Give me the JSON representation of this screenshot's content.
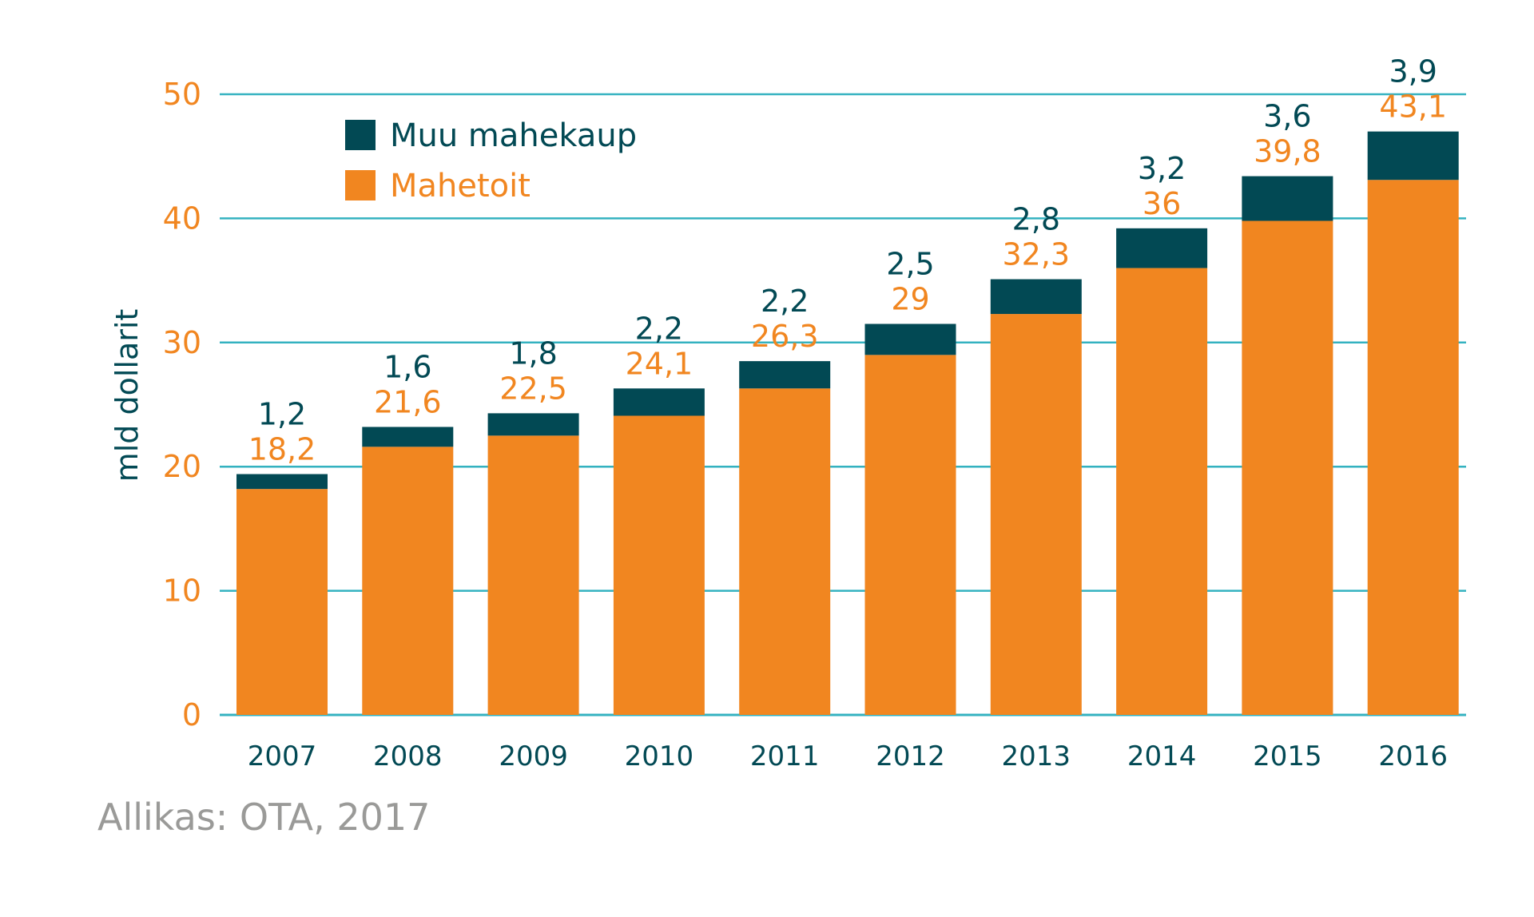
{
  "colors": {
    "food": "#F18620",
    "other": "#024954",
    "grid": "#34B2C0",
    "tick_label": "#F18620",
    "year_label": "#024954",
    "axis_title": "#024954",
    "source": "#9A9A98"
  },
  "chart_data": {
    "type": "bar",
    "stacked": true,
    "title": "",
    "xlabel": "",
    "ylabel": "mld dollarit",
    "ylim": [
      0,
      50
    ],
    "yticks": [
      0,
      10,
      20,
      30,
      40,
      50
    ],
    "grid": true,
    "legend_position": "top-left",
    "categories": [
      "2007",
      "2008",
      "2009",
      "2010",
      "2011",
      "2012",
      "2013",
      "2014",
      "2015",
      "2016"
    ],
    "series": [
      {
        "name": "Mahetoit",
        "color": "#F18620",
        "values": [
          18.2,
          21.6,
          22.5,
          24.1,
          26.3,
          29,
          32.3,
          36,
          39.8,
          43.1
        ],
        "labels": [
          "18,2",
          "21,6",
          "22,5",
          "24,1",
          "26,3",
          "29",
          "32,3",
          "36",
          "39,8",
          "43,1"
        ]
      },
      {
        "name": "Muu mahekaup",
        "color": "#024954",
        "values": [
          1.2,
          1.6,
          1.8,
          2.2,
          2.2,
          2.5,
          2.8,
          3.2,
          3.6,
          3.9
        ],
        "labels": [
          "1,2",
          "1,6",
          "1,8",
          "2,2",
          "2,2",
          "2,5",
          "2,8",
          "3,2",
          "3,6",
          "3,9"
        ]
      }
    ],
    "legend": [
      {
        "label": "Muu mahekaup",
        "color": "#024954"
      },
      {
        "label": "Mahetoit",
        "color": "#F18620"
      }
    ]
  },
  "source_note": "Allikas: OTA, 2017"
}
